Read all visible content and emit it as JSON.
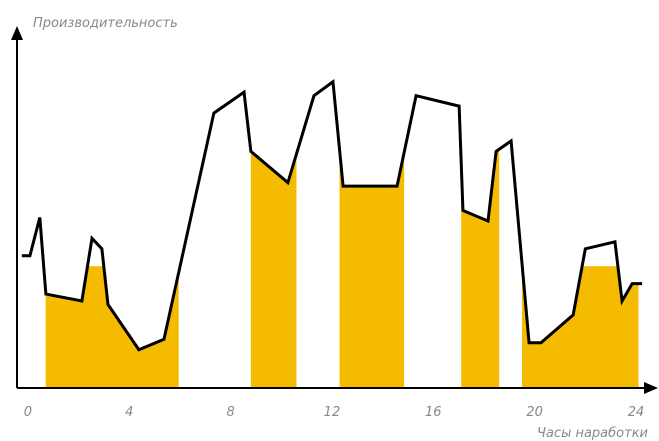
{
  "chart_data": {
    "type": "line",
    "y_label": "Производительность",
    "x_label": "Часы наработки",
    "x": [
      -0.24,
      0.08,
      0.47,
      0.71,
      2.13,
      2.53,
      2.92,
      3.16,
      4.38,
      5.37,
      7.34,
      8.53,
      8.8,
      10.26,
      11.29,
      12.04,
      12.44,
      14.57,
      15.32,
      17.02,
      17.17,
      18.16,
      18.48,
      19.07,
      19.78,
      20.25,
      21.52,
      22.0,
      23.17,
      23.45,
      23.85,
      24.24
    ],
    "series": [
      {
        "color": "#000000",
        "values": [
          38,
          38,
          49,
          27,
          25,
          43,
          40,
          24,
          11,
          14,
          79,
          85,
          68,
          59,
          84,
          88,
          58,
          58,
          84,
          81,
          51,
          48,
          68,
          71,
          13,
          13,
          21,
          40,
          42,
          25,
          30,
          30
        ]
      }
    ],
    "fill_levels": [
      {
        "from": 0.7,
        "to": 5.95,
        "value": 35
      },
      {
        "from": 8.8,
        "to": 10.6,
        "value": 70
      },
      {
        "from": 12.3,
        "to": 14.85,
        "value": 70
      },
      {
        "from": 17.1,
        "to": 18.6,
        "value": 70
      },
      {
        "from": 19.5,
        "to": 24.1,
        "value": 35
      }
    ],
    "fill_color": "#f5bb00",
    "xlim": [
      -0.43,
      24.75
    ],
    "ylim": [
      0,
      100
    ],
    "xticks": [
      0,
      4,
      8,
      12,
      16,
      20,
      24
    ]
  }
}
